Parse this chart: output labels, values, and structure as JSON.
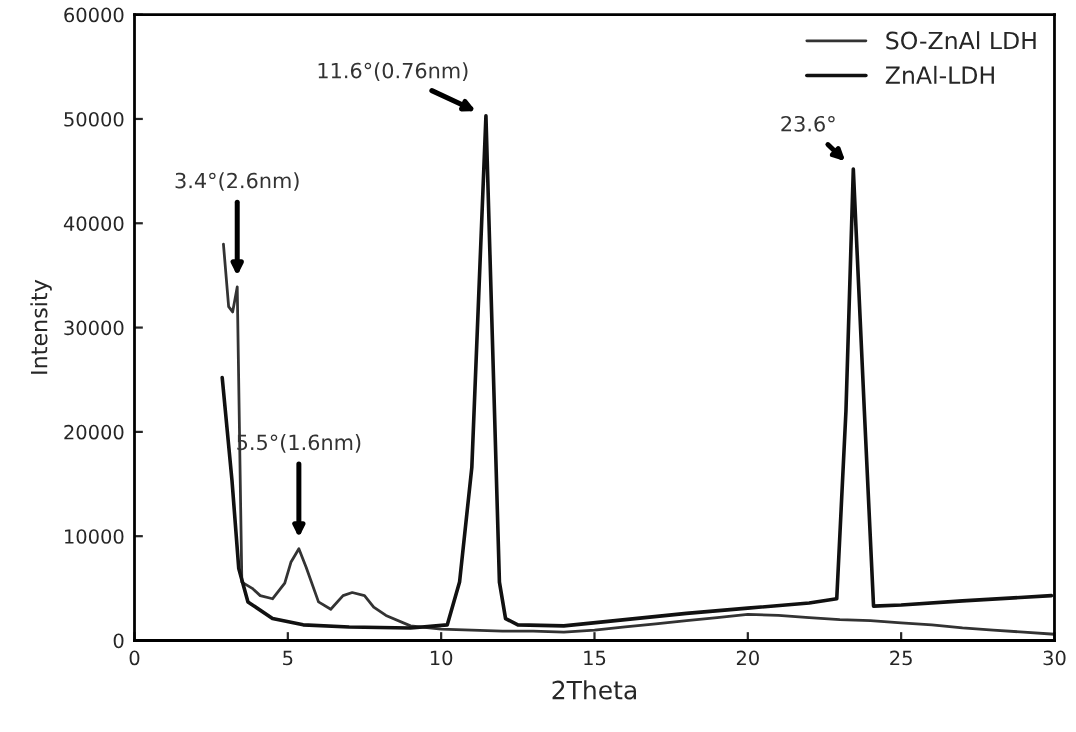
{
  "chart_data": {
    "type": "line",
    "xlabel": "2Theta",
    "ylabel": "Intensity",
    "xlim": [
      0,
      30
    ],
    "xticks": [
      0,
      5,
      10,
      15,
      20,
      25,
      30
    ],
    "ylim": [
      0,
      60000
    ],
    "yticks": [
      0,
      10000,
      20000,
      30000,
      40000,
      50000,
      60000
    ],
    "grid": false,
    "legend": "top right",
    "marker": "none",
    "line_style": "solid",
    "series": [
      {
        "name": "SO-ZnAl LDH",
        "color": "#333333",
        "x": [
          2.9,
          3.07,
          3.2,
          3.35,
          3.5,
          3.84,
          4.1,
          4.5,
          4.9,
          5.1,
          5.36,
          5.6,
          6.0,
          6.4,
          6.8,
          7.1,
          7.5,
          7.8,
          8.2,
          9.0,
          10,
          11,
          12,
          13,
          14,
          15,
          16,
          17,
          18,
          19,
          20,
          21,
          22,
          23,
          24,
          25,
          26,
          27,
          28,
          29,
          30
        ],
        "values": [
          38000,
          32000,
          31500,
          33900,
          5600,
          5000,
          4300,
          4000,
          5500,
          7500,
          8800,
          7000,
          3700,
          3000,
          4300,
          4600,
          4300,
          3200,
          2400,
          1400,
          1100,
          1000,
          900,
          900,
          800,
          1000,
          1300,
          1600,
          1900,
          2200,
          2500,
          2400,
          2200,
          2000,
          1900,
          1700,
          1500,
          1200,
          1000,
          800,
          600
        ]
      },
      {
        "name": "ZnAl-LDH",
        "color": "#111111",
        "x": [
          2.86,
          3.18,
          3.4,
          3.7,
          4.5,
          5.5,
          7,
          9,
          10.2,
          10.6,
          11.0,
          11.46,
          11.9,
          12.1,
          12.5,
          14,
          16,
          18,
          20,
          22,
          22.9,
          23.2,
          23.44,
          23.8,
          24.1,
          25,
          27,
          29.9
        ],
        "values": [
          25200,
          15300,
          6900,
          3700,
          2100,
          1500,
          1300,
          1200,
          1500,
          5600,
          16600,
          50300,
          5600,
          2100,
          1500,
          1400,
          2000,
          2600,
          3100,
          3600,
          4000,
          22000,
          45200,
          22000,
          3300,
          3400,
          3800,
          4300
        ]
      }
    ],
    "annotations": [
      {
        "text": "3.4°(2.6nm)",
        "x": 3.35,
        "y": 33900
      },
      {
        "text": "5.5°(1.6nm)",
        "x": 5.36,
        "y": 8800
      },
      {
        "text": "11.6°(0.76nm)",
        "x": 11.46,
        "y": 50300
      },
      {
        "text": "23.6°",
        "x": 23.44,
        "y": 45200
      }
    ]
  }
}
